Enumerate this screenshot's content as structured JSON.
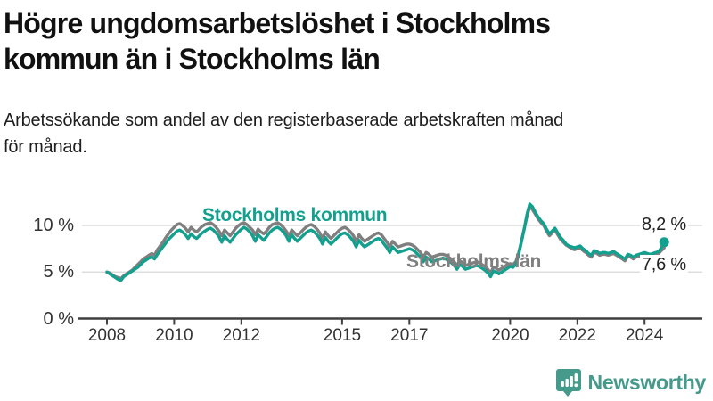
{
  "header": {
    "title_lines": {
      "0": "Högre ungdomsarbetslöshet i Stockholms",
      "1": "kommun än i Stockholms län"
    },
    "subtitle": "Arbetssökande som andel av den registerbaserade arbetskraften månad för månad."
  },
  "chart_data": {
    "type": "line",
    "x_start_year": 2008,
    "x_frequency": "monthly",
    "ylim": [
      0,
      13
    ],
    "grid": "horizontal",
    "y_ticks": [
      {
        "value": 0,
        "label": "0 %"
      },
      {
        "value": 5,
        "label": "5 %"
      },
      {
        "value": 10,
        "label": "10 %"
      }
    ],
    "x_ticks": [
      {
        "year": 2008,
        "label": "2008"
      },
      {
        "year": 2010,
        "label": "2010"
      },
      {
        "year": 2012,
        "label": "2012"
      },
      {
        "year": 2015,
        "label": "2015"
      },
      {
        "year": 2017,
        "label": "2017"
      },
      {
        "year": 2020,
        "label": "2020"
      },
      {
        "year": 2022,
        "label": "2022"
      },
      {
        "year": 2024,
        "label": "2024"
      }
    ],
    "series": [
      {
        "name": "Stockholms län",
        "color": "#7F7F7F",
        "end_label": "7,6 %",
        "values": [
          5.0,
          4.9,
          4.7,
          4.5,
          4.4,
          4.3,
          4.6,
          4.8,
          5.0,
          5.2,
          5.5,
          5.8,
          6.1,
          6.4,
          6.6,
          6.8,
          7.0,
          6.8,
          7.4,
          7.8,
          8.2,
          8.7,
          9.1,
          9.5,
          9.8,
          10.1,
          10.2,
          10.0,
          9.7,
          9.3,
          9.8,
          9.5,
          9.3,
          9.6,
          9.9,
          10.1,
          10.2,
          10.3,
          10.1,
          9.8,
          9.4,
          8.9,
          9.5,
          9.2,
          8.9,
          9.3,
          9.7,
          10.0,
          10.2,
          10.3,
          10.1,
          9.8,
          9.5,
          9.0,
          9.6,
          9.3,
          9.1,
          9.4,
          9.8,
          10.1,
          10.2,
          10.3,
          10.1,
          9.8,
          9.4,
          8.9,
          9.5,
          9.2,
          8.9,
          9.2,
          9.5,
          9.8,
          10.0,
          10.1,
          9.9,
          9.6,
          9.2,
          8.6,
          9.3,
          8.9,
          8.6,
          8.9,
          9.2,
          9.5,
          9.7,
          9.8,
          9.6,
          9.3,
          8.9,
          8.3,
          9.0,
          8.6,
          8.3,
          8.5,
          8.7,
          8.9,
          9.1,
          9.2,
          9.0,
          8.6,
          8.2,
          7.7,
          8.3,
          8.0,
          7.7,
          7.8,
          7.9,
          8.0,
          8.0,
          7.9,
          7.7,
          7.4,
          7.1,
          6.6,
          7.1,
          6.9,
          6.6,
          6.7,
          6.8,
          6.9,
          6.9,
          6.8,
          6.6,
          6.4,
          6.1,
          5.7,
          6.2,
          6.0,
          5.7,
          5.8,
          5.9,
          6.0,
          6.1,
          6.0,
          5.8,
          5.6,
          5.3,
          4.9,
          5.5,
          5.4,
          5.2,
          5.4,
          5.6,
          5.8,
          5.9,
          5.8,
          6.1,
          7.0,
          8.3,
          9.6,
          11.0,
          12.0,
          11.7,
          11.2,
          10.7,
          10.3,
          10.0,
          9.4,
          8.9,
          9.2,
          9.5,
          9.0,
          8.5,
          8.2,
          7.9,
          7.7,
          7.5,
          7.4,
          7.5,
          7.6,
          7.3,
          7.1,
          6.8,
          6.6,
          7.1,
          7.0,
          6.8,
          6.9,
          6.9,
          6.8,
          6.9,
          7.0,
          6.8,
          6.6,
          6.4,
          6.2,
          6.7,
          6.6,
          6.4,
          6.6,
          6.7,
          6.8,
          6.9,
          6.8,
          6.7,
          6.8,
          6.9,
          7.0,
          7.3,
          7.6
        ]
      },
      {
        "name": "Stockholms kommun",
        "color": "#14A08E",
        "end_label": "8,2 %",
        "end_dot": true,
        "values": [
          5.0,
          4.8,
          4.6,
          4.4,
          4.2,
          4.1,
          4.5,
          4.7,
          4.9,
          5.1,
          5.3,
          5.5,
          5.8,
          6.1,
          6.3,
          6.5,
          6.6,
          6.4,
          6.9,
          7.3,
          7.7,
          8.1,
          8.5,
          8.8,
          9.1,
          9.4,
          9.5,
          9.3,
          9.0,
          8.6,
          9.1,
          8.8,
          8.6,
          8.9,
          9.2,
          9.4,
          9.6,
          9.7,
          9.5,
          9.2,
          8.8,
          8.2,
          8.9,
          8.5,
          8.2,
          8.6,
          9.0,
          9.3,
          9.6,
          9.8,
          9.6,
          9.3,
          8.9,
          8.3,
          9.0,
          8.7,
          8.4,
          8.8,
          9.2,
          9.5,
          9.7,
          9.8,
          9.6,
          9.3,
          8.9,
          8.3,
          9.0,
          8.6,
          8.3,
          8.6,
          8.9,
          9.2,
          9.4,
          9.5,
          9.3,
          9.0,
          8.6,
          8.0,
          8.7,
          8.3,
          8.0,
          8.3,
          8.6,
          8.9,
          9.1,
          9.2,
          9.0,
          8.7,
          8.3,
          7.7,
          8.4,
          8.0,
          7.7,
          7.9,
          8.1,
          8.3,
          8.5,
          8.6,
          8.4,
          8.0,
          7.6,
          7.1,
          7.7,
          7.4,
          7.1,
          7.2,
          7.3,
          7.4,
          7.5,
          7.4,
          7.2,
          6.9,
          6.6,
          6.1,
          6.6,
          6.4,
          6.1,
          6.2,
          6.3,
          6.4,
          6.5,
          6.4,
          6.2,
          6.0,
          5.7,
          5.3,
          5.8,
          5.6,
          5.3,
          5.4,
          5.5,
          5.6,
          5.7,
          5.6,
          5.4,
          5.2,
          4.9,
          4.5,
          5.1,
          5.0,
          4.8,
          5.0,
          5.2,
          5.4,
          5.6,
          5.5,
          5.8,
          6.8,
          8.2,
          9.6,
          11.2,
          12.3,
          12.0,
          11.4,
          10.9,
          10.5,
          10.2,
          9.6,
          9.1,
          9.4,
          9.7,
          9.2,
          8.7,
          8.4,
          8.0,
          7.8,
          7.7,
          7.6,
          7.7,
          7.8,
          7.5,
          7.3,
          7.0,
          6.8,
          7.3,
          7.2,
          7.0,
          7.1,
          7.1,
          7.0,
          7.1,
          7.2,
          7.0,
          6.8,
          6.6,
          6.4,
          6.9,
          6.8,
          6.6,
          6.8,
          6.9,
          7.0,
          7.1,
          7.0,
          6.9,
          7.0,
          7.1,
          7.2,
          7.6,
          8.2
        ]
      }
    ],
    "colors": {
      "grid": "#D8D8D8",
      "axis": "#3F3F3F",
      "tick_text": "#333333"
    }
  },
  "footer": {
    "brand": "Newsworthy",
    "logo_icon": "chart-speech-bubble-icon",
    "logo_color": "#459A8C"
  }
}
